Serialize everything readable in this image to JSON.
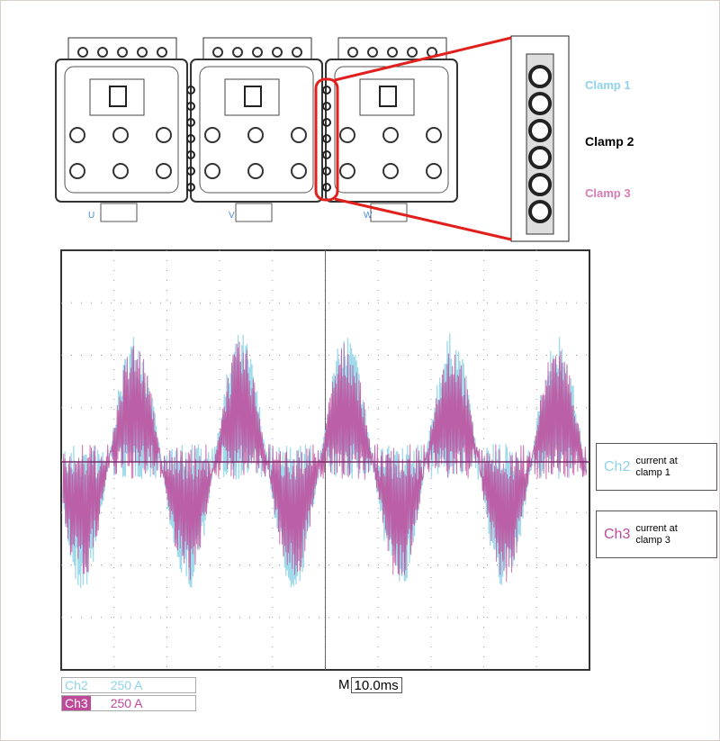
{
  "schematic": {
    "phases": [
      "U",
      "V",
      "W"
    ],
    "clamps": [
      "Clamp 1",
      "Clamp 2",
      "Clamp 3"
    ]
  },
  "scope": {
    "legend": [
      {
        "channel": "Ch2",
        "description": "current at clamp 1"
      },
      {
        "channel": "Ch3",
        "description": "current at clamp 3"
      }
    ],
    "channels": [
      {
        "name": "Ch2",
        "scale": "250 A"
      },
      {
        "name": "Ch3",
        "scale": "250 A"
      }
    ],
    "timebase": {
      "label": "M",
      "value": "10.0ms"
    }
  }
}
